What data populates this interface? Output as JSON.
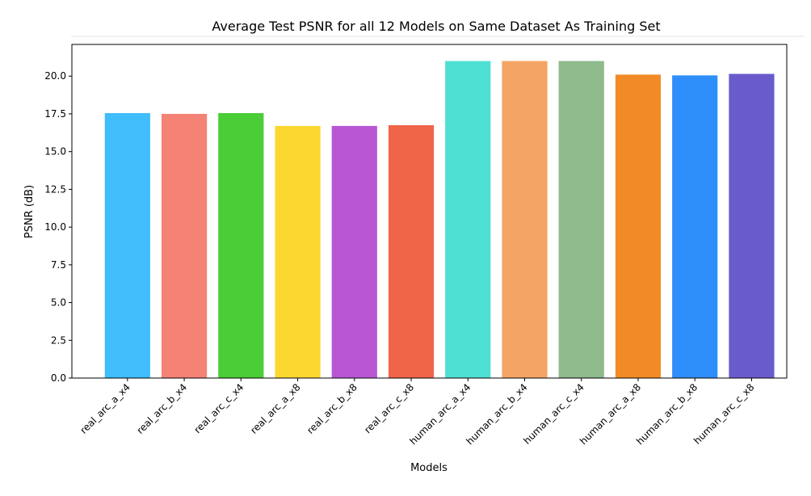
{
  "chart_data": {
    "type": "bar",
    "title": "Average Test PSNR for all 12 Models on Same Dataset As Training Set",
    "xlabel": "Models",
    "ylabel": "PSNR (dB)",
    "ylim": [
      0,
      22.1
    ],
    "yticks": [
      0.0,
      2.5,
      5.0,
      7.5,
      10.0,
      12.5,
      15.0,
      17.5,
      20.0
    ],
    "ytick_labels": [
      "0.0",
      "2.5",
      "5.0",
      "7.5",
      "10.0",
      "12.5",
      "15.0",
      "17.5",
      "20.0"
    ],
    "grid": false,
    "categories": [
      "real_arc_a_x4",
      "real_arc_b_x4",
      "real_arc_c_x4",
      "real_arc_a_x8",
      "real_arc_b_x8",
      "real_arc_c_x8",
      "human_arc_a_x4",
      "human_arc_b_x4",
      "human_arc_c_x4",
      "human_arc_a_x8",
      "human_arc_b_x8",
      "human_arc_c_x8"
    ],
    "values": [
      17.55,
      17.5,
      17.55,
      16.7,
      16.7,
      16.75,
      21.0,
      21.0,
      21.0,
      20.1,
      20.05,
      20.15
    ],
    "colors": [
      "#40bdfb",
      "#f48275",
      "#4acd36",
      "#fcd730",
      "#b856d4",
      "#f06448",
      "#4ee0d2",
      "#f4a464",
      "#8eba8c",
      "#f28b25",
      "#2f8ffa",
      "#6a5bcc"
    ]
  }
}
